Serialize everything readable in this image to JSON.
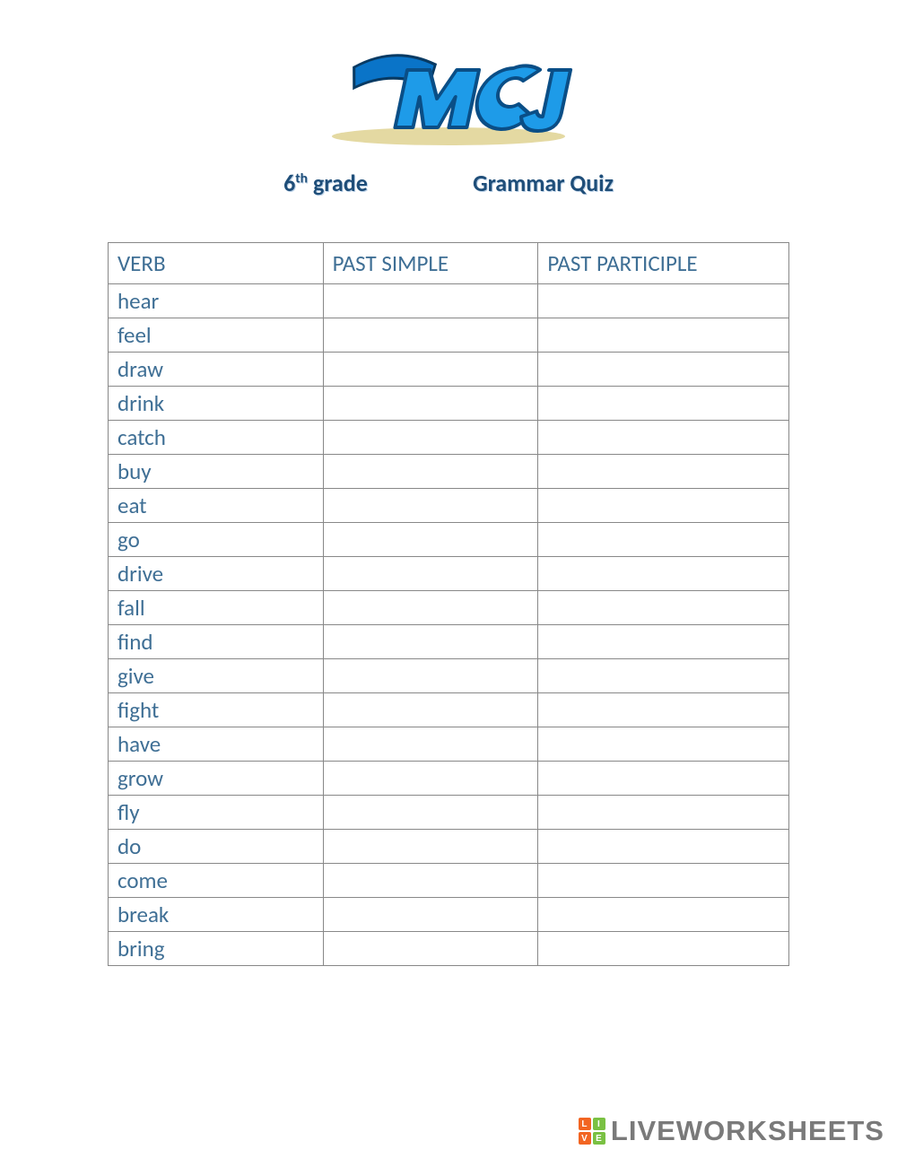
{
  "header": {
    "logo_text": "MCJ",
    "logo_colors": {
      "swoosh": "#0a74c8",
      "letters": "#1e9be8",
      "outline": "#0a4e86"
    },
    "grade_prefix": "6",
    "grade_suffix": "th",
    "grade_label": "grade",
    "title": "Grammar Quiz",
    "text_color": "#1f4e79"
  },
  "table": {
    "columns": [
      "VERB",
      "PAST SIMPLE",
      "PAST PARTICIPLE"
    ],
    "header_color": "#3f6f95",
    "cell_text_color": "#3f6f95",
    "border_color": "#888888",
    "rows": [
      {
        "verb": "hear",
        "past_simple": "",
        "past_participle": ""
      },
      {
        "verb": "feel",
        "past_simple": "",
        "past_participle": ""
      },
      {
        "verb": "draw",
        "past_simple": "",
        "past_participle": ""
      },
      {
        "verb": "drink",
        "past_simple": "",
        "past_participle": ""
      },
      {
        "verb": "catch",
        "past_simple": "",
        "past_participle": ""
      },
      {
        "verb": "buy",
        "past_simple": "",
        "past_participle": ""
      },
      {
        "verb": "eat",
        "past_simple": "",
        "past_participle": ""
      },
      {
        "verb": "go",
        "past_simple": "",
        "past_participle": ""
      },
      {
        "verb": "drive",
        "past_simple": "",
        "past_participle": ""
      },
      {
        "verb": "fall",
        "past_simple": "",
        "past_participle": ""
      },
      {
        "verb": "find",
        "past_simple": "",
        "past_participle": ""
      },
      {
        "verb": "give",
        "past_simple": "",
        "past_participle": ""
      },
      {
        "verb": "fight",
        "past_simple": "",
        "past_participle": ""
      },
      {
        "verb": "have",
        "past_simple": "",
        "past_participle": ""
      },
      {
        "verb": "grow",
        "past_simple": "",
        "past_participle": ""
      },
      {
        "verb": "fly",
        "past_simple": "",
        "past_participle": ""
      },
      {
        "verb": "do",
        "past_simple": "",
        "past_participle": ""
      },
      {
        "verb": "come",
        "past_simple": "",
        "past_participle": ""
      },
      {
        "verb": "break",
        "past_simple": "",
        "past_participle": ""
      },
      {
        "verb": "bring",
        "past_simple": "",
        "past_participle": ""
      }
    ]
  },
  "watermark": {
    "text": "LIVEWORKSHEETS",
    "badge": [
      "L",
      "I",
      "V",
      "E"
    ],
    "badge_colors": [
      "#f26522",
      "#7ac143",
      "#f26522",
      "#7ac143"
    ],
    "text_color": "#7a7a7a"
  }
}
